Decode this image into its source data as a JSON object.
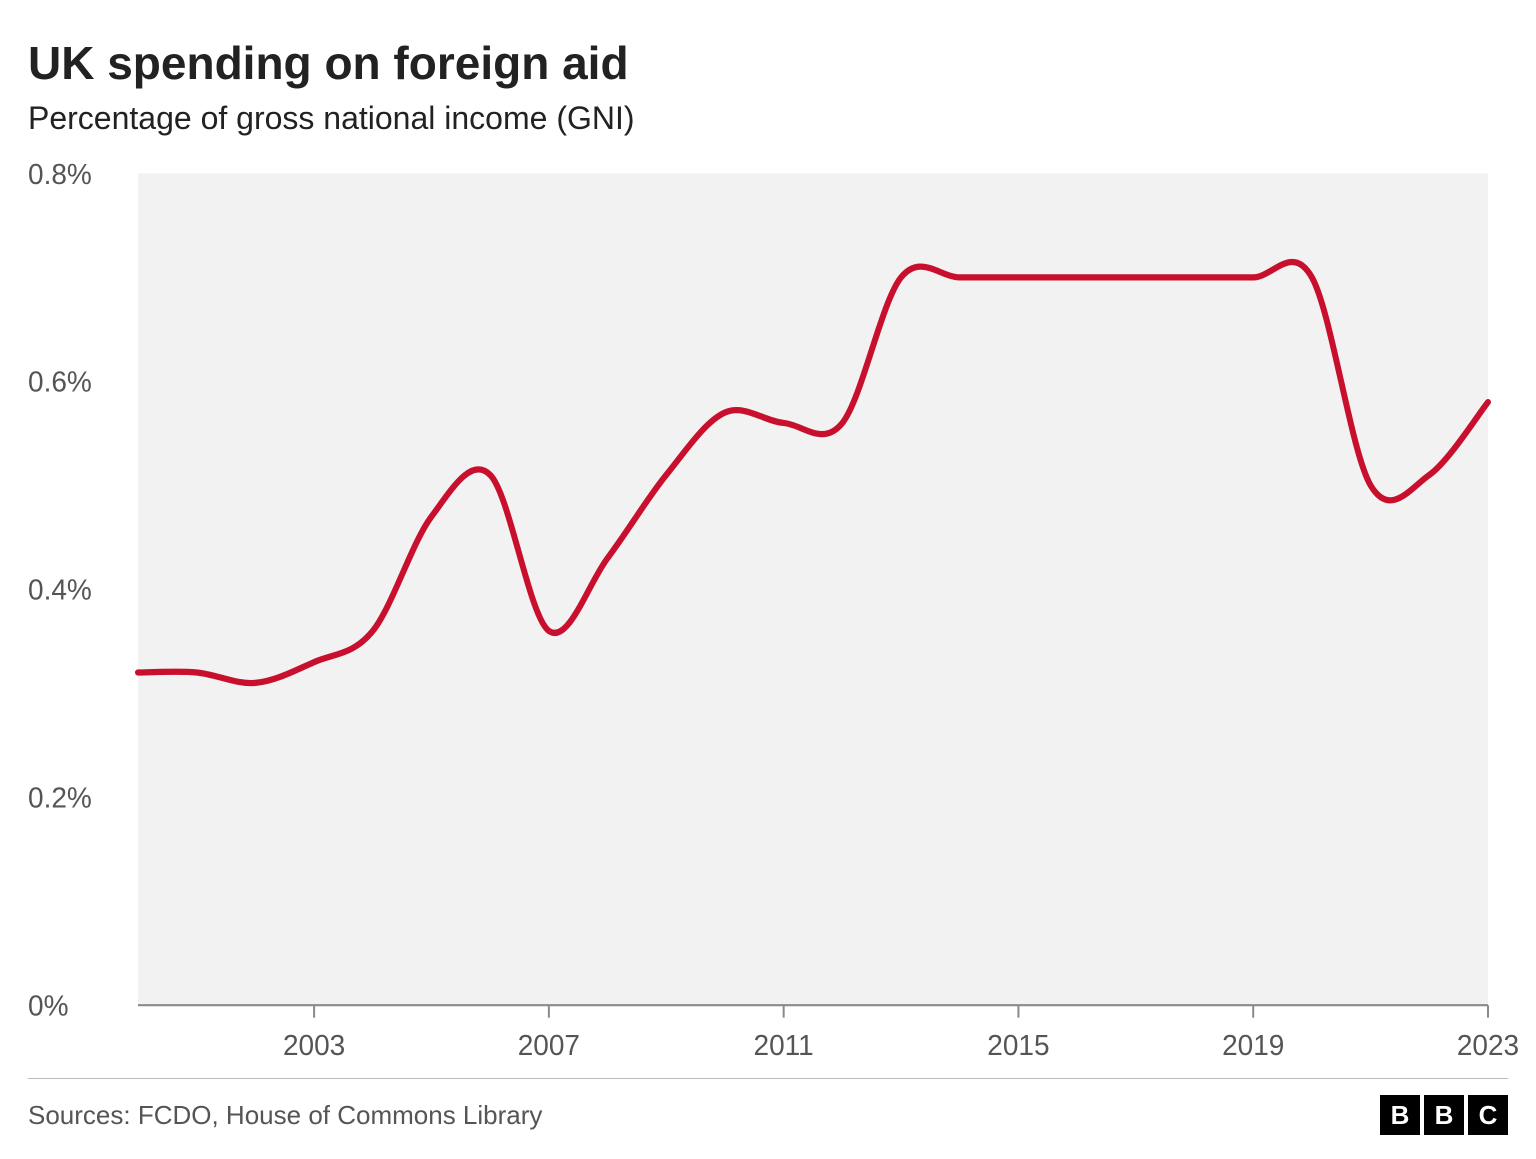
{
  "header": {
    "title": "UK spending on foreign aid",
    "subtitle": "Percentage of gross national income (GNI)"
  },
  "chart": {
    "type": "line",
    "background_color": "#f2f2f2",
    "axis_color": "#8a8a8a",
    "tick_font_size": 28,
    "tick_font_color": "#555555",
    "y": {
      "min": 0,
      "max": 0.8,
      "ticks": [
        0,
        0.2,
        0.4,
        0.6,
        0.8
      ],
      "tick_labels": [
        "0%",
        "0.2%",
        "0.4%",
        "0.6%",
        "0.8%"
      ]
    },
    "x": {
      "min": 2000,
      "max": 2023,
      "ticks": [
        2003,
        2007,
        2011,
        2015,
        2019,
        2023
      ],
      "tick_labels": [
        "2003",
        "2007",
        "2011",
        "2015",
        "2019",
        "2023"
      ]
    },
    "series": {
      "color": "#c8102e",
      "line_width": 6,
      "points": [
        [
          2000,
          0.32
        ],
        [
          2001,
          0.32
        ],
        [
          2002,
          0.31
        ],
        [
          2003,
          0.33
        ],
        [
          2004,
          0.36
        ],
        [
          2005,
          0.47
        ],
        [
          2006,
          0.51
        ],
        [
          2007,
          0.36
        ],
        [
          2008,
          0.43
        ],
        [
          2009,
          0.51
        ],
        [
          2010,
          0.57
        ],
        [
          2011,
          0.56
        ],
        [
          2012,
          0.56
        ],
        [
          2013,
          0.7
        ],
        [
          2014,
          0.7
        ],
        [
          2015,
          0.7
        ],
        [
          2016,
          0.7
        ],
        [
          2017,
          0.7
        ],
        [
          2018,
          0.7
        ],
        [
          2019,
          0.7
        ],
        [
          2020,
          0.7
        ],
        [
          2021,
          0.5
        ],
        [
          2022,
          0.51
        ],
        [
          2023,
          0.58
        ]
      ]
    }
  },
  "footer": {
    "source": "Sources: FCDO, House of Commons Library",
    "logo_letters": [
      "B",
      "B",
      "C"
    ]
  }
}
